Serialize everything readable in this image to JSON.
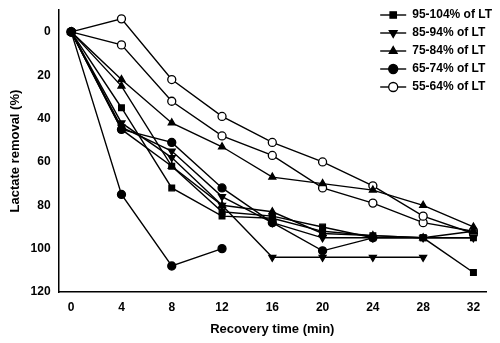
{
  "chart_data": {
    "type": "line",
    "x_label": "Recovery time (min)",
    "y_label": "Lactate removal (%)",
    "x": [
      0,
      4,
      8,
      12,
      16,
      20,
      24,
      28,
      32
    ],
    "xlim": [
      -1,
      33
    ],
    "xticks": [
      0,
      4,
      8,
      12,
      16,
      20,
      24,
      28,
      32
    ],
    "ylim": [
      120,
      -10
    ],
    "yticks": [
      0,
      20,
      40,
      60,
      80,
      100,
      120
    ],
    "grid": false,
    "legend": "top-right",
    "series": [
      {
        "name": "95-104% of LT",
        "color": "#000000",
        "marker": "square",
        "line_style": "solid",
        "values": [
          0,
          35,
          72,
          85,
          86,
          92,
          94,
          95,
          95
        ]
      },
      {
        "color": "#000000",
        "marker": "square",
        "line_style": "solid",
        "values": [
          0,
          45,
          62,
          83,
          85,
          90,
          95,
          95,
          111
        ]
      },
      {
        "name": "85-94% of LT",
        "color": "#000000",
        "marker": "triangle-down",
        "line_style": "solid",
        "values": [
          0,
          42,
          58,
          80,
          104,
          104,
          104,
          104,
          null
        ]
      },
      {
        "color": "#000000",
        "marker": "triangle-down",
        "line_style": "solid",
        "values": [
          0,
          44,
          55,
          76,
          88,
          95,
          95,
          95,
          95
        ]
      },
      {
        "name": "75-84% of LT",
        "color": "#000000",
        "marker": "triangle",
        "line_style": "solid",
        "values": [
          0,
          22,
          42,
          53,
          67,
          70,
          73,
          80,
          90
        ]
      },
      {
        "color": "#000000",
        "marker": "triangle",
        "line_style": "solid",
        "values": [
          0,
          25,
          62,
          80,
          83,
          93,
          94,
          95,
          92
        ]
      },
      {
        "name": "65-74% of LT",
        "color": "#000000",
        "marker": "circle",
        "line_style": "solid",
        "values": [
          0,
          75,
          108,
          100,
          null,
          null,
          null,
          null,
          null
        ]
      },
      {
        "color": "#000000",
        "marker": "circle",
        "line_style": "solid",
        "values": [
          0,
          45,
          51,
          72,
          88,
          101,
          95,
          null,
          null
        ]
      },
      {
        "name": "55-64% of LT",
        "color": "#000000",
        "marker": "circle-open",
        "line_style": "solid",
        "values": [
          0,
          -6,
          22,
          39,
          51,
          60,
          71,
          85,
          93
        ]
      },
      {
        "color": "#000000",
        "marker": "circle-open",
        "line_style": "solid",
        "values": [
          0,
          6,
          32,
          48,
          57,
          72,
          79,
          88,
          92
        ]
      }
    ]
  }
}
